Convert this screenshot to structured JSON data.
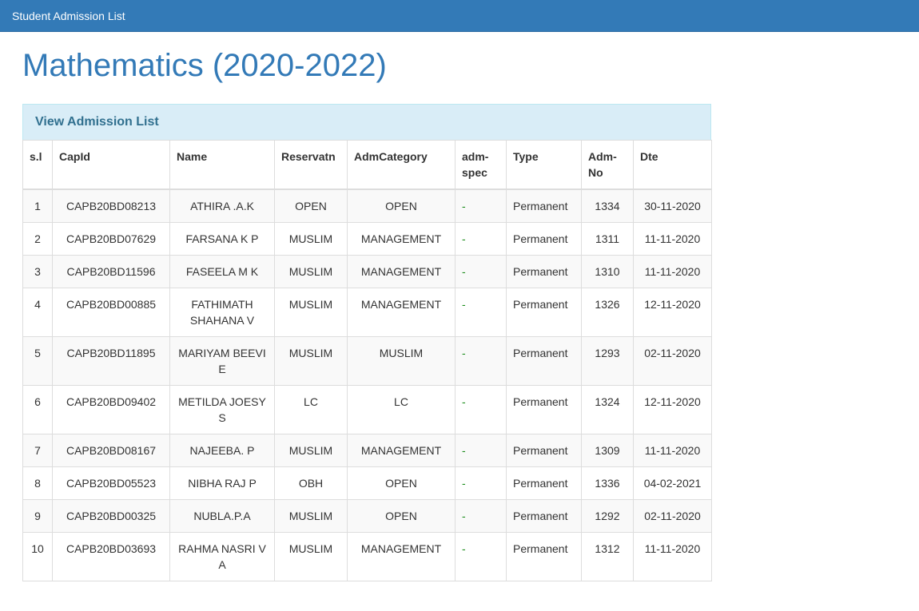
{
  "navbar": {
    "title": "Student Admission List",
    "bg_color": "#337ab7",
    "text_color": "#ffffff"
  },
  "page": {
    "heading": "Mathematics (2020-2022)",
    "heading_color": "#337ab7"
  },
  "panel": {
    "title": "View Admission List",
    "header_bg": "#d9edf7",
    "header_text_color": "#31708f",
    "header_border_color": "#bce8f1"
  },
  "table": {
    "stripe_color": "#f9f9f9",
    "border_color": "#dddddd",
    "adm_spec_dash_color": "#1e8e1e",
    "columns": [
      {
        "key": "sl",
        "label": "s.l"
      },
      {
        "key": "capid",
        "label": "CapId"
      },
      {
        "key": "name",
        "label": "Name"
      },
      {
        "key": "reservatn",
        "label": "Reservatn"
      },
      {
        "key": "admcategory",
        "label": "AdmCategory"
      },
      {
        "key": "admspec",
        "label": "adm-spec"
      },
      {
        "key": "type",
        "label": "Type"
      },
      {
        "key": "admno",
        "label": "Adm-No"
      },
      {
        "key": "dte",
        "label": "Dte"
      }
    ],
    "rows": [
      {
        "sl": "1",
        "capid": "CAPB20BD08213",
        "name": "ATHIRA .A.K",
        "reservatn": "OPEN",
        "admcategory": "OPEN",
        "admspec": "-",
        "type": "Permanent",
        "admno": "1334",
        "dte": "30-11-2020"
      },
      {
        "sl": "2",
        "capid": "CAPB20BD07629",
        "name": "FARSANA K P",
        "reservatn": "MUSLIM",
        "admcategory": "MANAGEMENT",
        "admspec": "-",
        "type": "Permanent",
        "admno": "1311",
        "dte": "11-11-2020"
      },
      {
        "sl": "3",
        "capid": "CAPB20BD11596",
        "name": "FASEELA M K",
        "reservatn": "MUSLIM",
        "admcategory": "MANAGEMENT",
        "admspec": "-",
        "type": "Permanent",
        "admno": "1310",
        "dte": "11-11-2020"
      },
      {
        "sl": "4",
        "capid": "CAPB20BD00885",
        "name": "FATHIMATH SHAHANA V",
        "reservatn": "MUSLIM",
        "admcategory": "MANAGEMENT",
        "admspec": "-",
        "type": "Permanent",
        "admno": "1326",
        "dte": "12-11-2020"
      },
      {
        "sl": "5",
        "capid": "CAPB20BD11895",
        "name": "MARIYAM BEEVI E",
        "reservatn": "MUSLIM",
        "admcategory": "MUSLIM",
        "admspec": "-",
        "type": "Permanent",
        "admno": "1293",
        "dte": "02-11-2020"
      },
      {
        "sl": "6",
        "capid": "CAPB20BD09402",
        "name": "METILDA JOESY S",
        "reservatn": "LC",
        "admcategory": "LC",
        "admspec": "-",
        "type": "Permanent",
        "admno": "1324",
        "dte": "12-11-2020"
      },
      {
        "sl": "7",
        "capid": "CAPB20BD08167",
        "name": "NAJEEBA. P",
        "reservatn": "MUSLIM",
        "admcategory": "MANAGEMENT",
        "admspec": "-",
        "type": "Permanent",
        "admno": "1309",
        "dte": "11-11-2020"
      },
      {
        "sl": "8",
        "capid": "CAPB20BD05523",
        "name": "NIBHA RAJ P",
        "reservatn": "OBH",
        "admcategory": "OPEN",
        "admspec": "-",
        "type": "Permanent",
        "admno": "1336",
        "dte": "04-02-2021"
      },
      {
        "sl": "9",
        "capid": "CAPB20BD00325",
        "name": "NUBLA.P.A",
        "reservatn": "MUSLIM",
        "admcategory": "OPEN",
        "admspec": "-",
        "type": "Permanent",
        "admno": "1292",
        "dte": "02-11-2020"
      },
      {
        "sl": "10",
        "capid": "CAPB20BD03693",
        "name": "RAHMA NASRI V A",
        "reservatn": "MUSLIM",
        "admcategory": "MANAGEMENT",
        "admspec": "-",
        "type": "Permanent",
        "admno": "1312",
        "dte": "11-11-2020"
      }
    ]
  }
}
